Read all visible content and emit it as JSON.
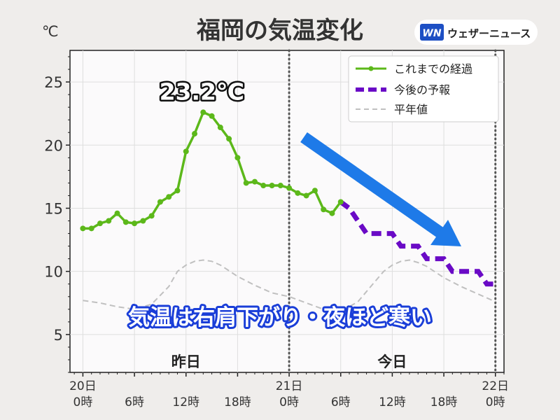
{
  "title": "福岡の気温変化",
  "brand": {
    "logo_text": "WN",
    "name": "ウェザーニュース"
  },
  "annotations": {
    "peak_label": "23.2℃",
    "trend_note": "気温は右肩下がり・夜ほど寒い",
    "day_yesterday": "昨日",
    "day_today": "今日"
  },
  "colors": {
    "observed": "#5cb81a",
    "forecast": "#6a0ac6",
    "normal": "#c0c0c0",
    "arrow": "#1e7ae8",
    "note_outline": "#1a3ed8"
  },
  "chart_data": {
    "type": "line",
    "title": "福岡の気温変化",
    "ylabel": "℃",
    "xlabel": "",
    "ylim": [
      2,
      27.5
    ],
    "xlim": [
      -1.5,
      49
    ],
    "y_ticks": [
      5,
      10,
      15,
      20,
      25
    ],
    "x_ticks": [
      {
        "x": 0,
        "lines": [
          "20日",
          "0時"
        ]
      },
      {
        "x": 6,
        "lines": [
          "6時"
        ]
      },
      {
        "x": 12,
        "lines": [
          "12時"
        ]
      },
      {
        "x": 18,
        "lines": [
          "18時"
        ]
      },
      {
        "x": 24,
        "lines": [
          "21日",
          "0時"
        ]
      },
      {
        "x": 30,
        "lines": [
          "6時"
        ]
      },
      {
        "x": 36,
        "lines": [
          "12時"
        ]
      },
      {
        "x": 42,
        "lines": [
          "18時"
        ]
      },
      {
        "x": 48,
        "lines": [
          "22日",
          "0時"
        ]
      }
    ],
    "day_boundaries": [
      24,
      48
    ],
    "grid": true,
    "legend_position": "top-right",
    "series": [
      {
        "name": "これまでの経過",
        "style": "solid-markers",
        "x": [
          0,
          1,
          2,
          3,
          4,
          5,
          6,
          7,
          8,
          9,
          10,
          11,
          12,
          13,
          14,
          15,
          16,
          17,
          18,
          19,
          20,
          21,
          22,
          23,
          24,
          25,
          26,
          27,
          28,
          29,
          30
        ],
        "y": [
          13.4,
          13.4,
          13.8,
          14.0,
          14.6,
          13.9,
          13.8,
          14.0,
          14.4,
          15.5,
          15.9,
          16.4,
          19.5,
          20.9,
          22.6,
          22.3,
          21.4,
          20.5,
          19.0,
          17.0,
          17.1,
          16.8,
          16.8,
          16.8,
          16.6,
          16.2,
          16.0,
          16.4,
          14.9,
          14.6,
          15.5
        ]
      },
      {
        "name": "今後の予報",
        "style": "thick-dashed-step",
        "x": [
          30,
          31,
          32,
          33,
          34,
          35,
          36,
          37,
          38,
          39,
          40,
          41,
          42,
          43,
          44,
          45,
          46,
          47,
          48
        ],
        "y": [
          15.5,
          15.0,
          14.0,
          13.0,
          13.0,
          13.0,
          13.0,
          12.0,
          12.0,
          12.0,
          11.0,
          11.0,
          11.0,
          10.0,
          10.0,
          10.0,
          10.0,
          9.0,
          9.0
        ]
      },
      {
        "name": "平年値",
        "style": "dashed",
        "x": [
          0,
          2,
          4,
          6,
          8,
          10,
          11,
          12,
          13,
          14,
          15,
          16,
          18,
          20,
          22,
          24,
          26,
          28,
          30,
          32,
          34,
          35,
          36,
          37,
          38,
          39,
          40,
          42,
          44,
          46,
          48
        ],
        "y": [
          7.7,
          7.5,
          7.2,
          7.0,
          7.4,
          8.8,
          10.0,
          10.5,
          10.8,
          10.9,
          10.8,
          10.5,
          9.6,
          8.9,
          8.3,
          8.0,
          7.5,
          7.0,
          6.8,
          7.6,
          9.2,
          10.0,
          10.5,
          10.8,
          10.9,
          10.7,
          10.4,
          9.5,
          8.8,
          8.2,
          7.6
        ]
      }
    ]
  }
}
